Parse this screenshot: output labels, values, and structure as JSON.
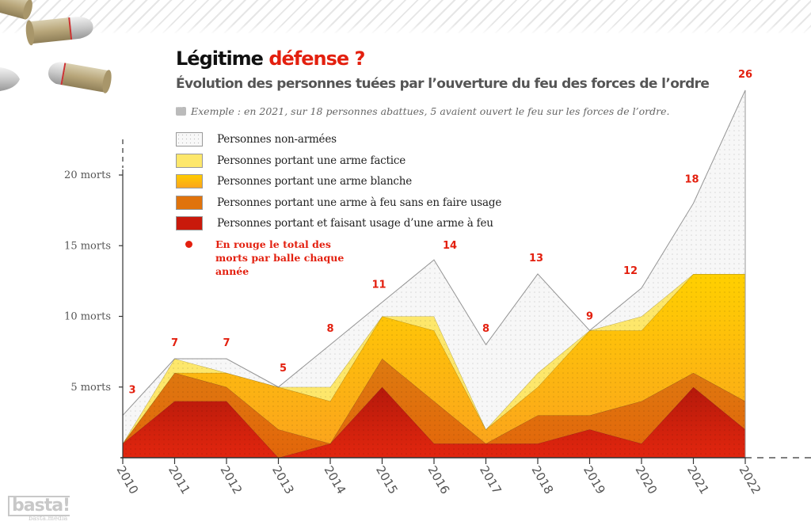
{
  "header": {
    "title_main": "Légitime",
    "title_accent": "défense ?",
    "subtitle": "Évolution des personnes tuées par l’ouverture du feu des forces de l’ordre",
    "example_icon": "speech-bubble-icon",
    "example": "Exemple : en 2021, sur 18 personnes abattues, 5 avaient ouvert le feu sur les forces de l’ordre."
  },
  "legend": {
    "items": [
      {
        "label": "Personnes non-armées",
        "color": "#f6f6f6"
      },
      {
        "label": "Personnes portant une arme factice",
        "color": "#fde76b"
      },
      {
        "label": "Personnes portant une arme blanche",
        "color": "#fcb515"
      },
      {
        "label": "Personnes portant une arme à feu sans en faire usage",
        "color": "#e0730c"
      },
      {
        "label": "Personnes portant et faisant usage d’une arme à feu",
        "color": "#c9190b"
      }
    ],
    "total_note": "En rouge le total des morts par balle chaque année",
    "total_color": "#e3200f"
  },
  "logo": {
    "main": "basta!",
    "sub": "basta.media"
  },
  "chart_data": {
    "type": "area",
    "stacked": true,
    "title": "Légitime défense ?",
    "subtitle": "Évolution des personnes tuées par l’ouverture du feu des forces de l’ordre",
    "xlabel": "",
    "ylabel": "",
    "x": [
      "2010",
      "2011",
      "2012",
      "2013",
      "2014",
      "2015",
      "2016",
      "2017",
      "2018",
      "2019",
      "2020",
      "2021",
      "2022"
    ],
    "ylim": [
      0,
      26
    ],
    "yticks": [
      5,
      10,
      15,
      20
    ],
    "ytick_labels": [
      "5 morts",
      "10 morts",
      "15 morts",
      "20 morts"
    ],
    "grid": false,
    "legend_position": "top-left",
    "series": [
      {
        "name": "Personnes portant et faisant usage d’une arme à feu",
        "color": "#c9190b",
        "values": [
          1,
          4,
          4,
          0,
          1,
          5,
          1,
          1,
          1,
          2,
          1,
          5,
          2
        ]
      },
      {
        "name": "Personnes portant une arme à feu sans en faire usage",
        "color": "#e0730c",
        "values": [
          0,
          2,
          1,
          2,
          0,
          2,
          3,
          0,
          2,
          1,
          3,
          1,
          2
        ]
      },
      {
        "name": "Personnes portant une arme blanche",
        "color": "#fcb515",
        "values": [
          0,
          0,
          1,
          3,
          3,
          3,
          5,
          1,
          2,
          6,
          5,
          7,
          9
        ]
      },
      {
        "name": "Personnes portant une arme factice",
        "color": "#fde76b",
        "values": [
          0,
          1,
          0,
          0,
          1,
          0,
          1,
          0,
          1,
          0,
          1,
          0,
          0
        ]
      },
      {
        "name": "Personnes non-armées",
        "color": "#f6f6f6",
        "values": [
          2,
          0,
          1,
          0,
          3,
          1,
          4,
          6,
          7,
          0,
          2,
          5,
          13
        ]
      }
    ],
    "totals": [
      3,
      7,
      7,
      5,
      8,
      11,
      14,
      8,
      13,
      9,
      12,
      18,
      26
    ]
  }
}
